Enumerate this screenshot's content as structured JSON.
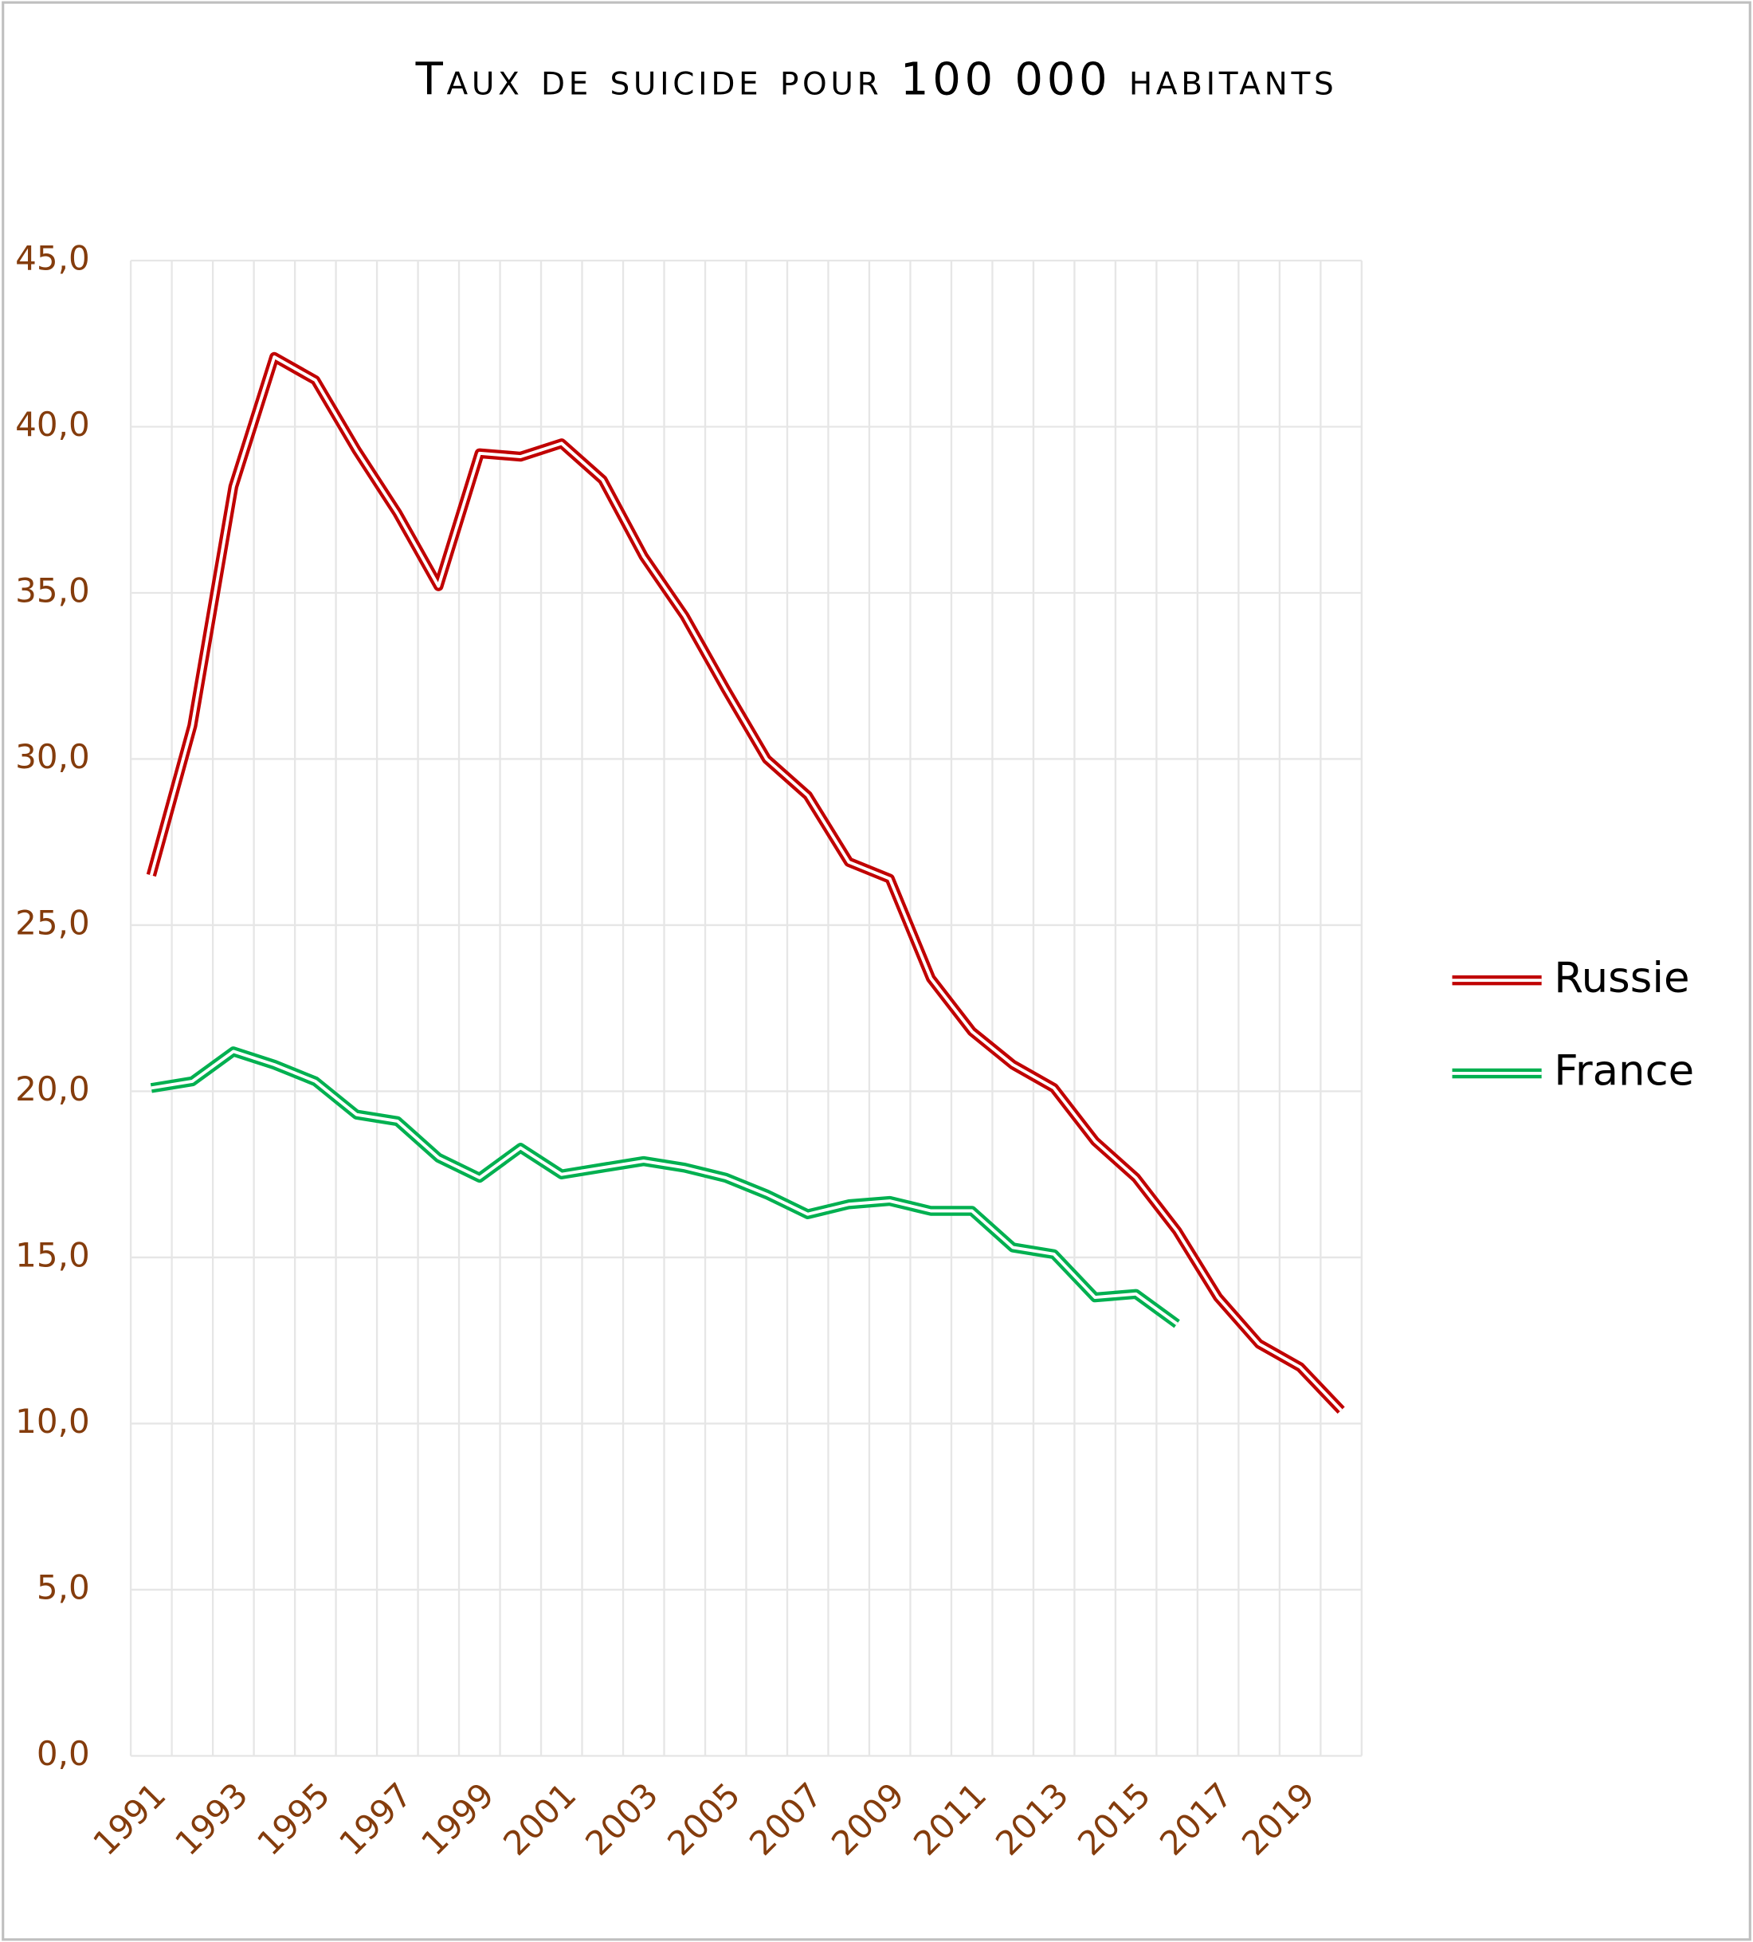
{
  "chart_data": {
    "type": "line",
    "title": "Taux de suicide pour 100 000 habitants",
    "categories": [
      "1991",
      null,
      "1993",
      null,
      "1995",
      null,
      "1997",
      null,
      "1999",
      null,
      "2001",
      null,
      "2003",
      null,
      "2005",
      null,
      "2007",
      null,
      "2009",
      null,
      "2011",
      null,
      "2013",
      null,
      "2015",
      null,
      "2017",
      null,
      "2019",
      null
    ],
    "series": [
      {
        "name": "Russie",
        "color": "#c00000",
        "values": [
          26.5,
          31.0,
          38.2,
          42.1,
          41.4,
          39.3,
          37.4,
          35.2,
          39.2,
          39.1,
          39.5,
          38.4,
          36.1,
          34.3,
          32.1,
          30.0,
          28.9,
          26.9,
          26.4,
          23.4,
          21.8,
          20.8,
          20.1,
          18.5,
          17.4,
          15.8,
          13.8,
          12.4,
          11.7,
          10.4
        ]
      },
      {
        "name": "France",
        "color": "#00b050",
        "values": [
          20.1,
          20.3,
          21.2,
          20.8,
          20.3,
          19.3,
          19.1,
          18.0,
          17.4,
          18.3,
          17.5,
          17.7,
          17.9,
          17.7,
          17.4,
          16.9,
          16.3,
          16.6,
          16.7,
          16.4,
          16.4,
          15.3,
          15.1,
          13.8,
          13.9,
          13.0,
          null,
          null,
          null,
          null
        ]
      }
    ],
    "ylim": [
      0,
      45
    ],
    "yticks": [
      {
        "value": 0,
        "label": "0,0"
      },
      {
        "value": 5,
        "label": "5,0"
      },
      {
        "value": 10,
        "label": "10,0"
      },
      {
        "value": 15,
        "label": "15,0"
      },
      {
        "value": 20,
        "label": "20,0"
      },
      {
        "value": 25,
        "label": "25,0"
      },
      {
        "value": 30,
        "label": "30,0"
      },
      {
        "value": 35,
        "label": "35,0"
      },
      {
        "value": 40,
        "label": "40,0"
      },
      {
        "value": 45,
        "label": "45,0"
      }
    ],
    "grid": true,
    "legend": "right"
  }
}
